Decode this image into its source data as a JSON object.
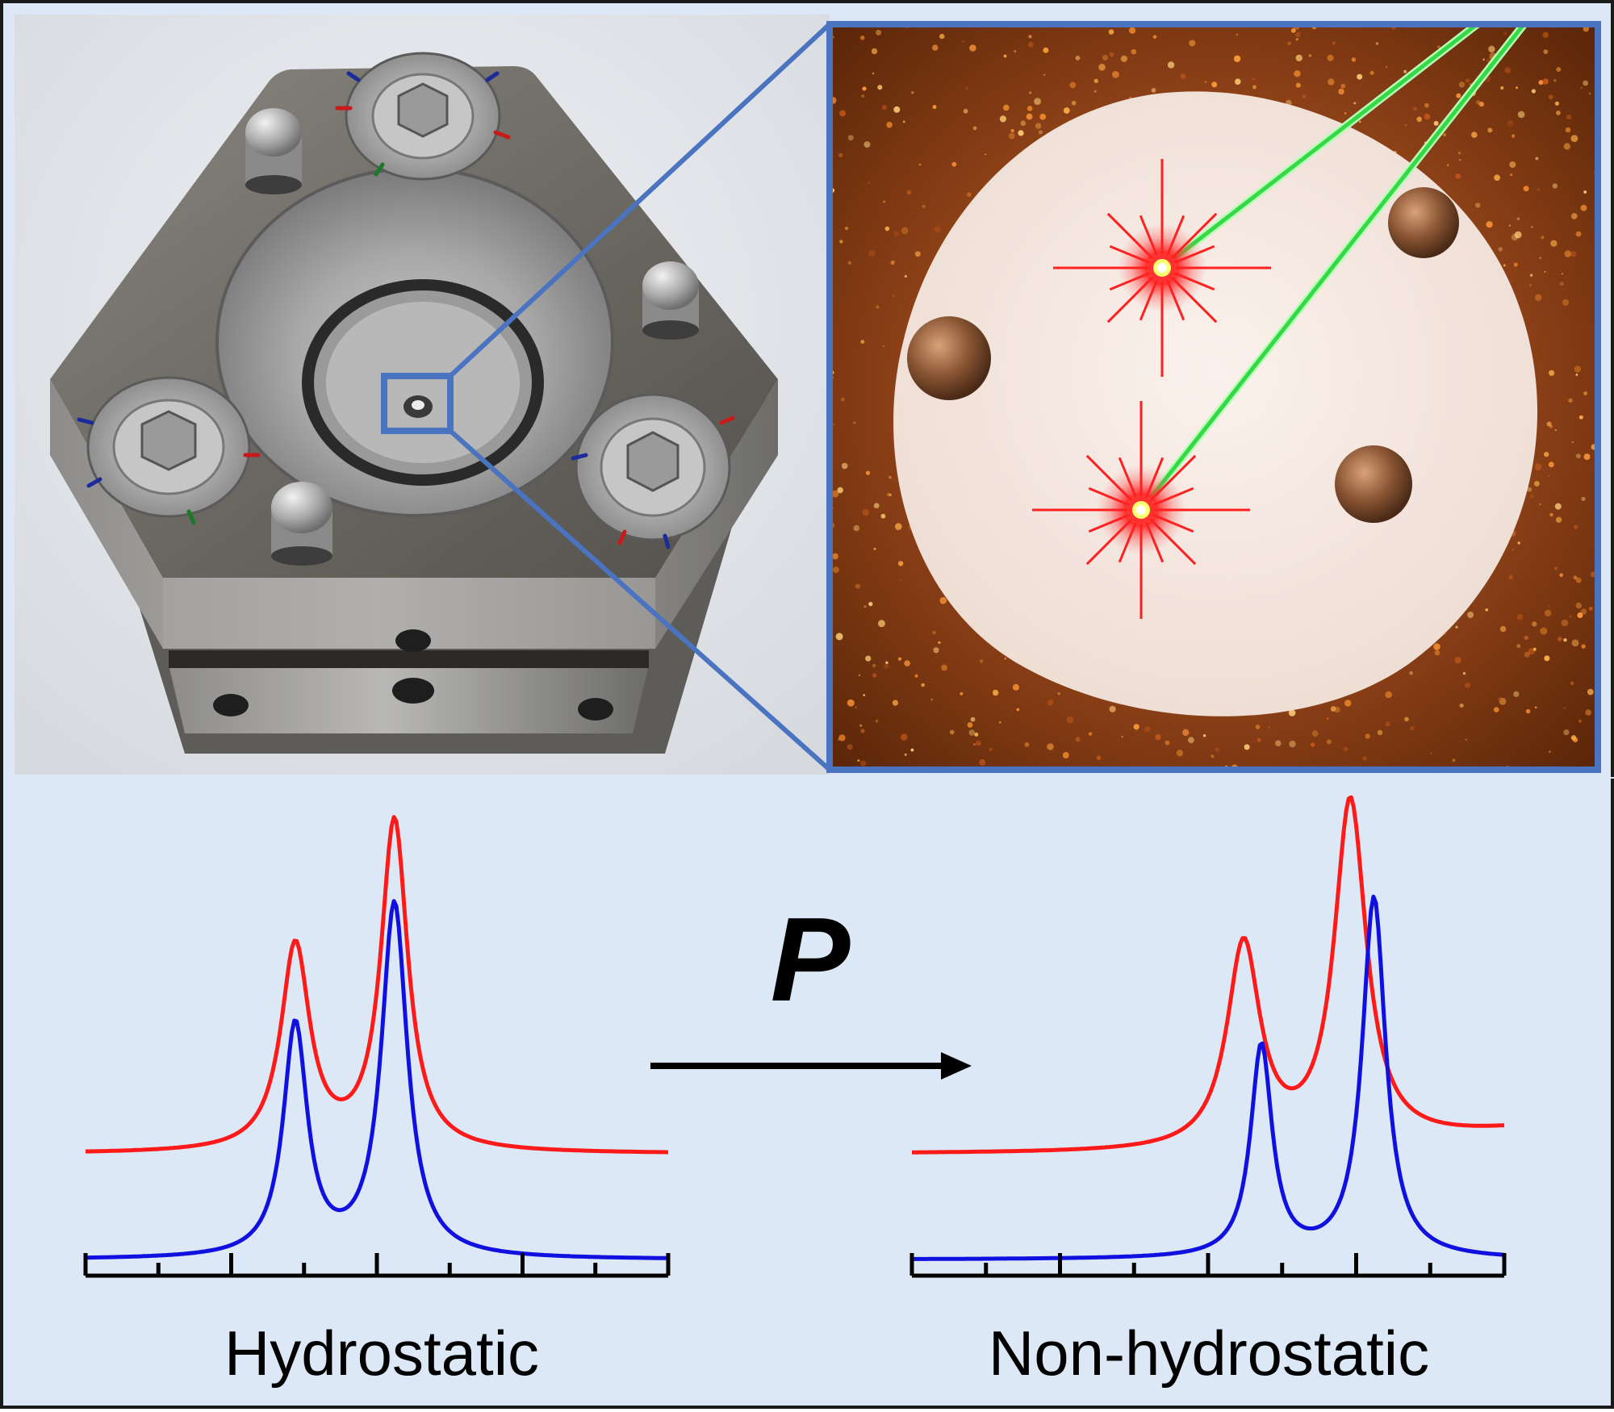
{
  "figure": {
    "background": "#dce8f5",
    "zoom_box_color": "#4a74c0",
    "photo_description_visible": false
  },
  "top_left_photo": {
    "subject": "pressure cell",
    "icons": [
      "hex-screw-icon",
      "dowel-pin-icon",
      "gasket-icon"
    ]
  },
  "top_right_zoom": {
    "subject": "sample chamber",
    "laser_color": "#3ddc4a",
    "emission_color": "#ff2020"
  },
  "arrow": {
    "label": "P",
    "color": "#000000"
  },
  "spectra": {
    "left_label": "Hydrostatic",
    "right_label": "Non-hydrostatic",
    "colors": {
      "upper": "#ff1a1a",
      "lower": "#1010e0",
      "axis": "#000000"
    }
  },
  "chart_data": [
    {
      "type": "line",
      "title": "",
      "xlabel": "Hydrostatic",
      "ylabel": "",
      "x_tick_count": 9,
      "series": [
        {
          "color": "#ff1a1a",
          "baseline": 0.0,
          "peaks": [
            {
              "pos": 0.36,
              "height": 0.62,
              "width": 0.03
            },
            {
              "pos": 0.53,
              "height": 1.0,
              "width": 0.028
            }
          ]
        },
        {
          "color": "#1010e0",
          "baseline": -0.32,
          "peaks": [
            {
              "pos": 0.36,
              "height": 0.7,
              "width": 0.025
            },
            {
              "pos": 0.53,
              "height": 1.07,
              "width": 0.027
            }
          ]
        }
      ]
    },
    {
      "type": "line",
      "title": "",
      "xlabel": "Non-hydrostatic",
      "ylabel": "",
      "x_tick_count": 9,
      "series": [
        {
          "color": "#ff1a1a",
          "baseline": 0.0,
          "peaks": [
            {
              "pos": 0.56,
              "height": 0.62,
              "width": 0.034
            },
            {
              "pos": 0.74,
              "height": 1.05,
              "width": 0.033
            }
          ],
          "tail": 0.1
        },
        {
          "color": "#1010e0",
          "baseline": -0.32,
          "peaks": [
            {
              "pos": 0.59,
              "height": 0.64,
              "width": 0.022
            },
            {
              "pos": 0.78,
              "height": 1.09,
              "width": 0.024
            }
          ]
        }
      ]
    }
  ]
}
